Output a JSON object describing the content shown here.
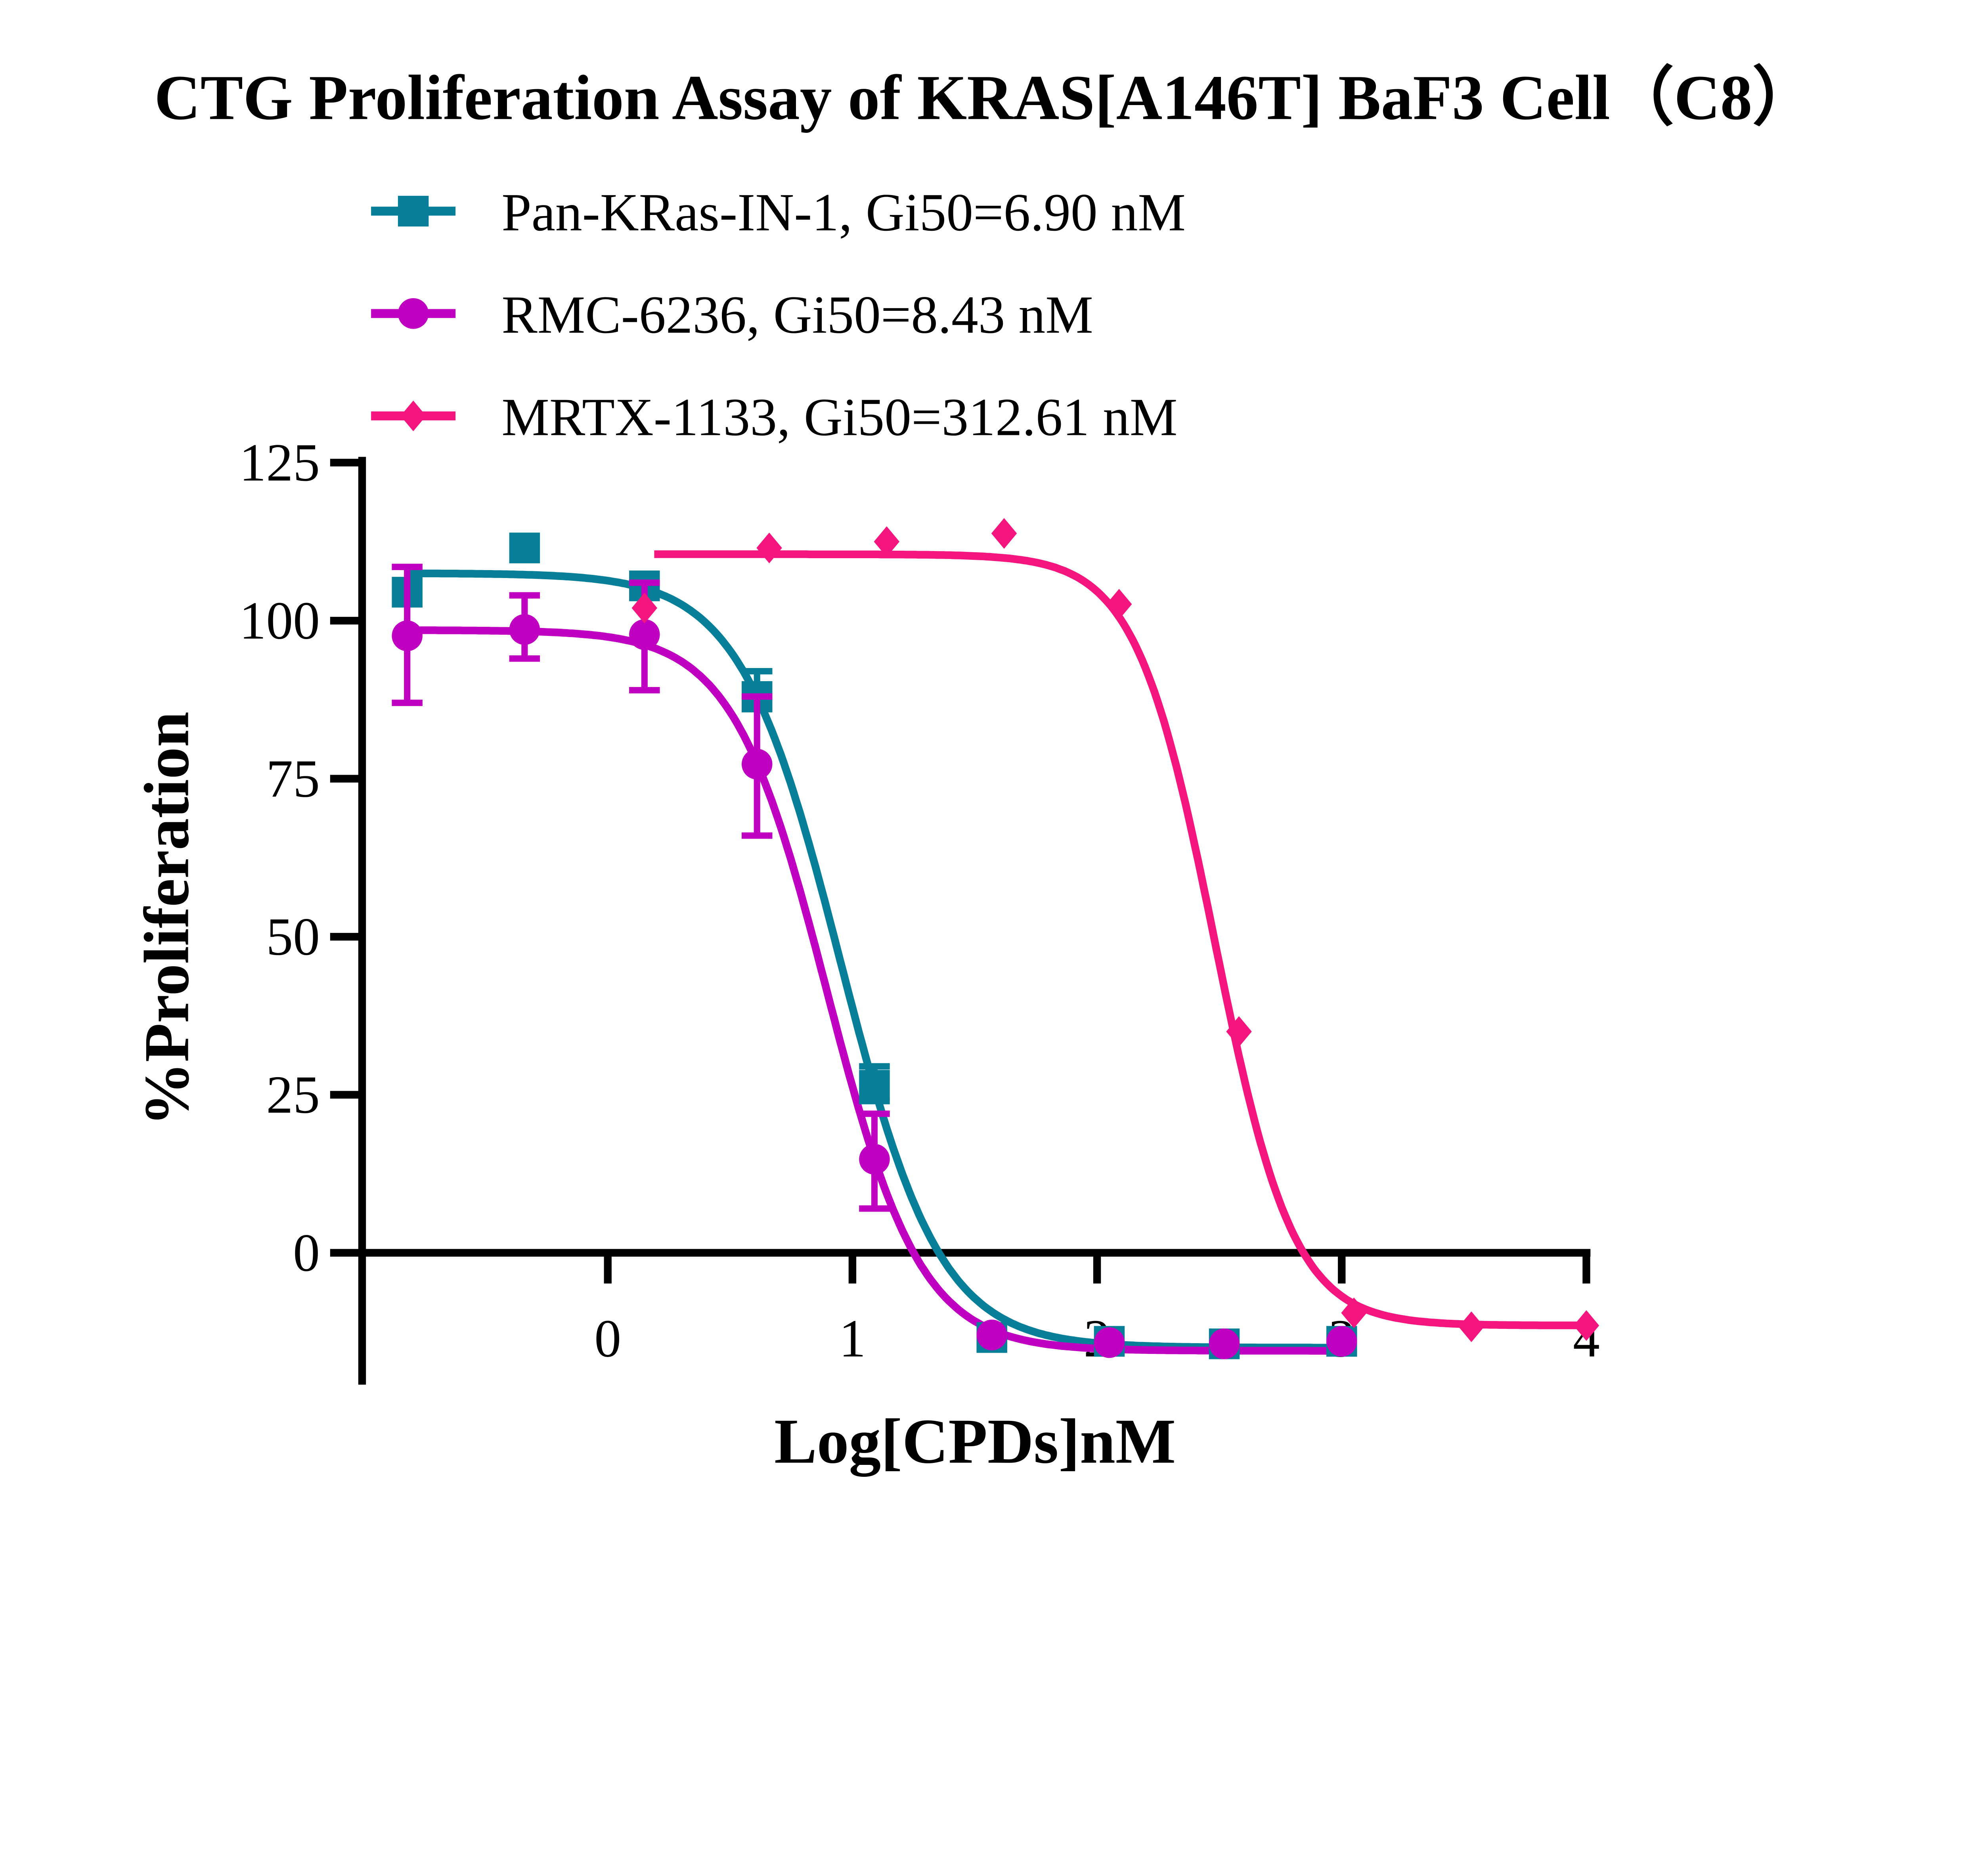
{
  "chart_data": {
    "type": "scatter",
    "title": "CTG Proliferation Assay of  KRAS[A146T] BaF3 Cell（C8）",
    "xlabel": "Log[CPDs]nM",
    "ylabel": "%Proliferation",
    "xlim": [
      -1,
      4
    ],
    "ylim": [
      -20,
      125
    ],
    "xticks": [
      "0",
      "1",
      "2",
      "3",
      "4"
    ],
    "yticks": [
      "0",
      "25",
      "50",
      "75",
      "100",
      "125"
    ],
    "grid": false,
    "legend_position": "top",
    "series": [
      {
        "name": "Pan-KRas-IN-1, Gi50=6.90 nM",
        "color": "#087F99",
        "marker": "square",
        "x": [
          -0.82,
          -0.34,
          0.15,
          0.61,
          1.09,
          1.57,
          2.05,
          2.52,
          3.0
        ],
        "y": [
          104.5,
          111.5,
          105.5,
          88,
          26.5,
          -13.4,
          -14,
          -14.4,
          -14
        ],
        "err_low": [
          null,
          null,
          null,
          86,
          24,
          null,
          null,
          null,
          null
        ],
        "err_high": [
          null,
          null,
          null,
          92,
          29.5,
          null,
          null,
          null,
          null
        ],
        "fit": {
          "top": 107.5,
          "bottom": -15,
          "logEC50": 0.95,
          "hill": 2.12,
          "xrange": [
            -0.82,
            3.0
          ]
        }
      },
      {
        "name": "RMC-6236, Gi50=8.43 nM",
        "color": "#C000C0",
        "marker": "circle",
        "x": [
          -0.82,
          -0.34,
          0.15,
          0.61,
          1.09,
          1.57,
          2.05,
          2.52,
          3.0
        ],
        "y": [
          97.6,
          98.6,
          97.8,
          77.3,
          14.8,
          -13,
          -14.2,
          -14.4,
          -14
        ],
        "err_low": [
          87,
          94,
          89,
          66,
          7,
          null,
          null,
          null,
          null
        ],
        "err_high": [
          108.5,
          104,
          106,
          88,
          22,
          null,
          null,
          null,
          null
        ],
        "fit": {
          "top": 98.5,
          "bottom": -15.5,
          "logEC50": 0.895,
          "hill": 2.26,
          "xrange": [
            -0.82,
            3.0
          ]
        }
      },
      {
        "name": "MRTX-1133, Gi50=312.61 nM",
        "color": "#F5157F",
        "marker": "diamond",
        "x": [
          0.15,
          0.66,
          1.14,
          1.62,
          2.09,
          2.58,
          3.05,
          3.53,
          4.0
        ],
        "y": [
          102,
          111.5,
          112.5,
          113.8,
          102.6,
          35,
          -9.5,
          -11.7,
          -11.5
        ],
        "err_low": [
          null,
          null,
          null,
          null,
          null,
          null,
          null,
          null,
          null
        ],
        "err_high": [
          null,
          null,
          null,
          null,
          null,
          null,
          null,
          null,
          null
        ],
        "fit": {
          "top": 110.5,
          "bottom": -11.5,
          "logEC50": 2.48,
          "hill": 2.7,
          "xrange": [
            0.19,
            4.0
          ]
        }
      }
    ]
  }
}
